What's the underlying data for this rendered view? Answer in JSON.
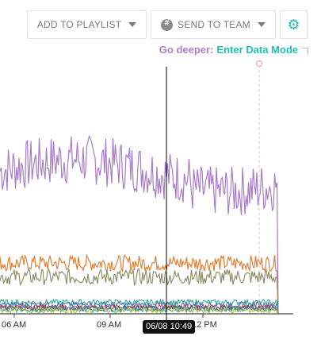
{
  "toolbar": {
    "playlist_label": "ADD TO PLAYLIST",
    "team_label": "SEND TO TEAM",
    "settings_icon": "gear-icon",
    "team_icon": "slack-icon"
  },
  "banner": {
    "prefix": "Go deeper:",
    "link": "Enter Data Mode",
    "colors": {
      "prefix": "#b27fc6",
      "link": "#1fbfb8"
    }
  },
  "chart_data": {
    "type": "line",
    "x_ticks": [
      "06 AM",
      "09 AM",
      "12 PM"
    ],
    "cursor_label": "06/08 10:49",
    "grid": false,
    "series": [
      {
        "color": "#a77bc9",
        "level": 0.62
      },
      {
        "color": "#e0803a",
        "level": 0.22
      },
      {
        "color": "#8e8f6a",
        "level": 0.16
      },
      {
        "color": "#1fa58a",
        "level": 0.05
      },
      {
        "color": "#3a6fb5",
        "level": 0.04
      },
      {
        "color": "#c9407a",
        "level": 0.03
      },
      {
        "color": "#5a4a3a",
        "level": 0.025
      },
      {
        "color": "#2c8ac9",
        "level": 0.02
      },
      {
        "color": "#9ac03a",
        "level": 0.015
      }
    ]
  }
}
